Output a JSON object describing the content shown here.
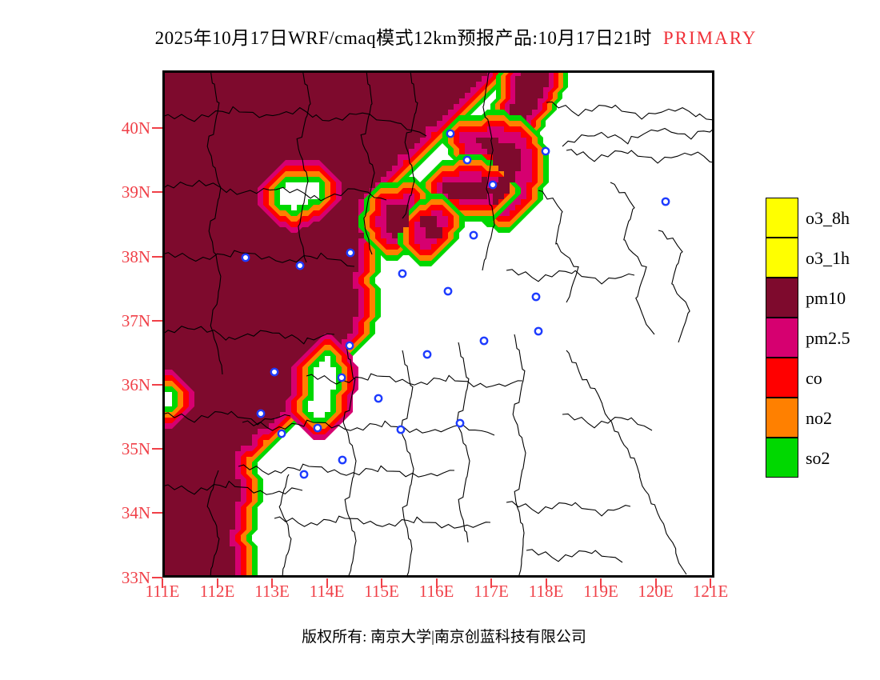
{
  "title": {
    "text": "2025年10月17日WRF/cmaq模式12km预报产品:10月17日21时",
    "highlight": "PRIMARY"
  },
  "axes": {
    "lat_labels": [
      "40N",
      "39N",
      "38N",
      "37N",
      "36N",
      "35N",
      "34N",
      "33N"
    ],
    "lon_labels": [
      "111E",
      "112E",
      "113E",
      "114E",
      "115E",
      "116E",
      "117E",
      "118E",
      "119E",
      "120E",
      "121E"
    ],
    "label_color": "#f04048"
  },
  "legend": {
    "items": [
      {
        "label": "o3_8h",
        "color": "#ffff00"
      },
      {
        "label": "o3_1h",
        "color": "#ffff00"
      },
      {
        "label": "pm10",
        "color": "#7e0a2d"
      },
      {
        "label": "pm2.5",
        "color": "#d60070"
      },
      {
        "label": "co",
        "color": "#ff0000"
      },
      {
        "label": "no2",
        "color": "#ff8000"
      },
      {
        "label": "so2",
        "color": "#00d800"
      }
    ]
  },
  "map": {
    "colors": {
      "pm10": "#7e0a2d",
      "pm25": "#d60070",
      "co": "#ff0000",
      "no2": "#ff8000",
      "so2": "#00d800",
      "boundary": "#000000",
      "marker": "#1e3cff",
      "frame": "#000000",
      "background": "#ffffff"
    },
    "markers": [
      [
        104,
        234
      ],
      [
        172,
        244
      ],
      [
        235,
        228
      ],
      [
        300,
        254
      ],
      [
        360,
        79
      ],
      [
        381,
        112
      ],
      [
        413,
        143
      ],
      [
        479,
        101
      ],
      [
        629,
        164
      ],
      [
        389,
        206
      ],
      [
        357,
        276
      ],
      [
        467,
        283
      ],
      [
        140,
        377
      ],
      [
        123,
        429
      ],
      [
        149,
        454
      ],
      [
        194,
        447
      ],
      [
        224,
        384
      ],
      [
        234,
        344
      ],
      [
        270,
        410
      ],
      [
        298,
        449
      ],
      [
        331,
        355
      ],
      [
        225,
        487
      ],
      [
        177,
        505
      ],
      [
        402,
        338
      ],
      [
        470,
        326
      ],
      [
        372,
        441
      ]
    ]
  },
  "footer": {
    "text": "版权所有: 南京大学|南京创蓝科技有限公司"
  }
}
